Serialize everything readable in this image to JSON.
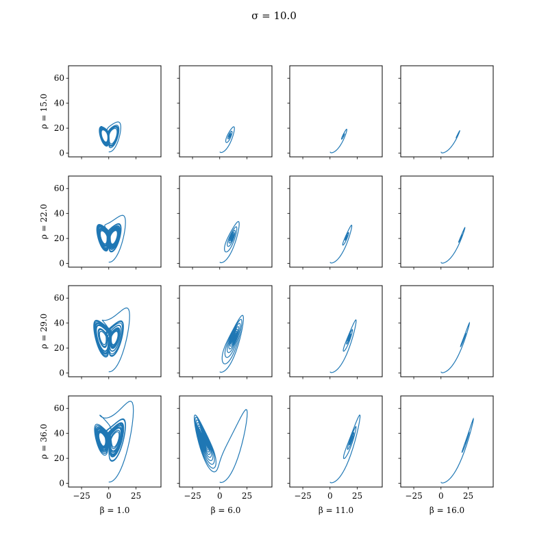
{
  "chart_data": {
    "type": "line",
    "title": "σ = 10.0",
    "description_of_series": "Lorenz system trajectories, x (horizontal) vs z (vertical)",
    "sigma": 10.0,
    "rho_values": [
      15.0,
      22.0,
      29.0,
      36.0
    ],
    "beta_values": [
      1.0,
      6.0,
      11.0,
      16.0
    ],
    "row_labels": [
      "ρ = 15.0",
      "ρ = 22.0",
      "ρ = 29.0",
      "ρ = 36.0"
    ],
    "col_labels": [
      "β = 1.0",
      "β = 6.0",
      "β = 11.0",
      "β = 16.0"
    ],
    "initial_state": [
      0.0,
      1.0,
      1.05
    ],
    "dt": 0.01,
    "steps": 5000,
    "xlim": [
      -37,
      48
    ],
    "ylim": [
      -3,
      70
    ],
    "xticks": [
      -25,
      0,
      25
    ],
    "xtick_labels": [
      "−25",
      "0",
      "25"
    ],
    "yticks": [
      0,
      20,
      40,
      60
    ],
    "ytick_labels": [
      "0",
      "20",
      "40",
      "60"
    ],
    "line_color": "#1f77b4",
    "grid": false,
    "sharex": true,
    "sharey": true
  }
}
